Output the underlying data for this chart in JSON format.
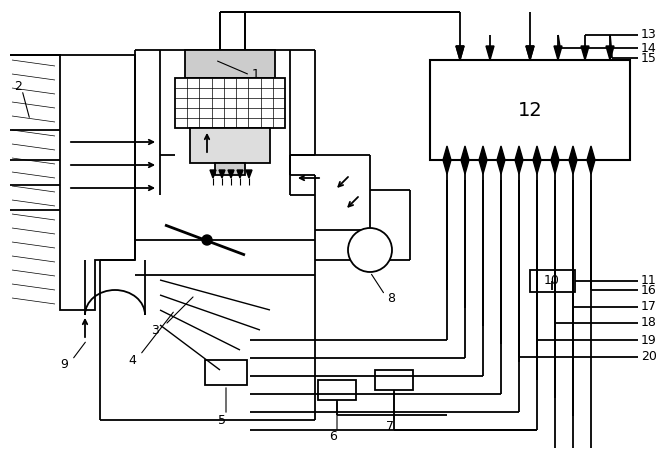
{
  "bg_color": "#ffffff",
  "fig_width": 6.68,
  "fig_height": 4.67,
  "dpi": 100
}
